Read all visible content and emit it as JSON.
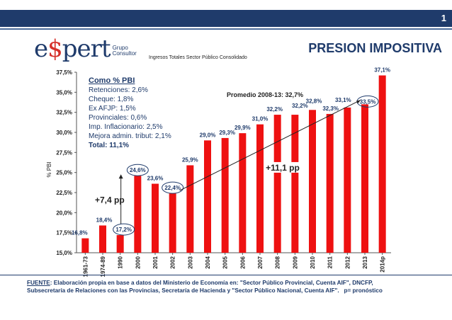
{
  "header": {
    "page_number": "1",
    "title": "PRESION IMPOSITIVA"
  },
  "logo": {
    "brand": "e$pert",
    "brand_left": "e",
    "brand_s": "$",
    "brand_right": "pert",
    "sub1": "Grupo",
    "sub2": "Consultor"
  },
  "chart_data": {
    "type": "bar",
    "title": "Ingresos Totales Sector Público Consolidado",
    "ylabel": "% PBI",
    "categories": [
      "1961-73",
      "1974-89",
      "1990",
      "2000",
      "2001",
      "2002",
      "2003",
      "2004",
      "2005",
      "2006",
      "2007",
      "2008",
      "2009",
      "2010",
      "2011",
      "2012",
      "2013",
      "2014p"
    ],
    "values": [
      16.8,
      18.4,
      17.2,
      24.6,
      23.6,
      22.4,
      25.9,
      29.0,
      29.3,
      29.9,
      31.0,
      32.2,
      32.2,
      32.8,
      32.3,
      33.1,
      33.5,
      37.1
    ],
    "data_labels": [
      "16,8%",
      "18,4%",
      "17,2%",
      "24,6%",
      "23,6%",
      "22,4%",
      "25,9%",
      "29,0%",
      "29,3%",
      "29,9%",
      "31,0%",
      "32,2%",
      "32,2%",
      "32,8%",
      "32,3%",
      "33,1%",
      "33,5%",
      "37,1%"
    ],
    "ylim": [
      15,
      38
    ],
    "yticks": [
      "15,0%",
      "17,5%",
      "20,0%",
      "22,5%",
      "25,0%",
      "27,5%",
      "30,0%",
      "32,5%",
      "35,0%",
      "37,5%"
    ],
    "color": "#ee1111",
    "grid": false,
    "annotations": {
      "average": "Promedio 2008-13: 32,7%",
      "left_increase": "+7,4 pp",
      "right_increase": "+11,1 pp"
    },
    "legend_box": {
      "heading": "Como % PBI",
      "items": [
        "Retenciones: 2,6%",
        "Cheque: 1,8%",
        "Ex AFJP: 1,5%",
        "Provinciales: 0,6%",
        "Imp. Inflacionario: 2,5%",
        "Mejora admin. tribut: 2,1%"
      ],
      "total": "Total: 11,1%"
    }
  },
  "footer": {
    "label": "FUENTE",
    "text1": ": Elaboración propia en base a datos del Ministerio de Economía en: \"Sector Público Provincial, Cuenta AIF\", DNCFP,",
    "text2": "Subsecretaría de Relaciones con las Provincias, Secretaría de Hacienda y \"Sector Público Nacional, Cuenta AIF\".",
    "note": "p= pronóstico"
  }
}
